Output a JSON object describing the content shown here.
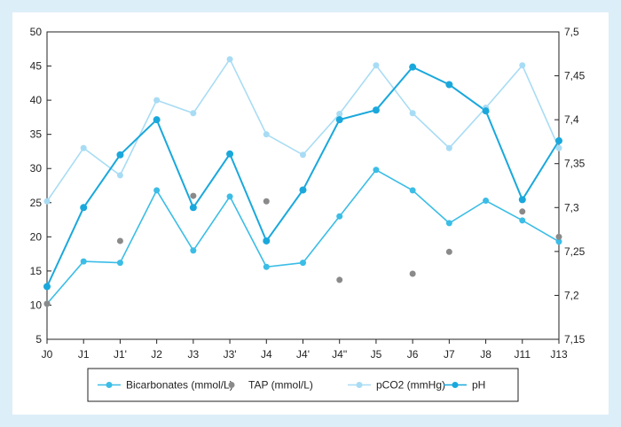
{
  "chart_data": {
    "type": "line",
    "categories": [
      "J0",
      "J1",
      "J1'",
      "J2",
      "J3",
      "J3'",
      "J4",
      "J4'",
      "J4''",
      "J5",
      "J6",
      "J7",
      "J8",
      "J11",
      "J13"
    ],
    "left_axis": {
      "ylim": [
        5,
        50
      ],
      "ticks": [
        "5",
        "10",
        "15",
        "20",
        "25",
        "30",
        "35",
        "40",
        "45",
        "50"
      ]
    },
    "right_axis": {
      "ylim": [
        7.15,
        7.5
      ],
      "ticks": [
        "7,15",
        "7,2",
        "7,25",
        "7,3",
        "7,35",
        "7,4",
        "7,45",
        "7,5"
      ]
    },
    "series": [
      {
        "name": "Bicarbonates (mmol/L)",
        "axis": "left",
        "style": "line-marker",
        "color": "#3bbde6",
        "values": [
          10.2,
          16.4,
          16.2,
          26.8,
          18,
          25.9,
          15.6,
          16.2,
          23,
          29.8,
          26.8,
          22,
          25.3,
          22.4,
          19.3
        ]
      },
      {
        "name": "TAP (mmol/L)",
        "axis": "left",
        "style": "marker",
        "color": "#8a8a8a",
        "values": [
          10.2,
          null,
          19.4,
          null,
          26,
          null,
          25.2,
          null,
          13.7,
          null,
          14.6,
          17.8,
          null,
          23.7,
          20
        ]
      },
      {
        "name": "pCO2 (mmHg)",
        "axis": "left",
        "style": "line-marker",
        "color": "#a8dcf4",
        "values": [
          25.2,
          33,
          29,
          40,
          38.1,
          46,
          35,
          32,
          38,
          45.1,
          38.1,
          33,
          38.9,
          45.1,
          33
        ]
      },
      {
        "name": "pH",
        "axis": "right",
        "style": "line-marker",
        "color": "#1aa8dc",
        "values": [
          7.21,
          7.3,
          7.36,
          7.4,
          7.3,
          7.361,
          7.262,
          7.32,
          7.4,
          7.411,
          7.46,
          7.44,
          7.41,
          7.309,
          7.376
        ]
      }
    ],
    "grid": false,
    "legend_position": "bottom"
  },
  "legend": {
    "items": [
      "Bicarbonates (mmol/L)",
      "TAP (mmol/L)",
      "pCO2 (mmHg)",
      "pH"
    ]
  }
}
